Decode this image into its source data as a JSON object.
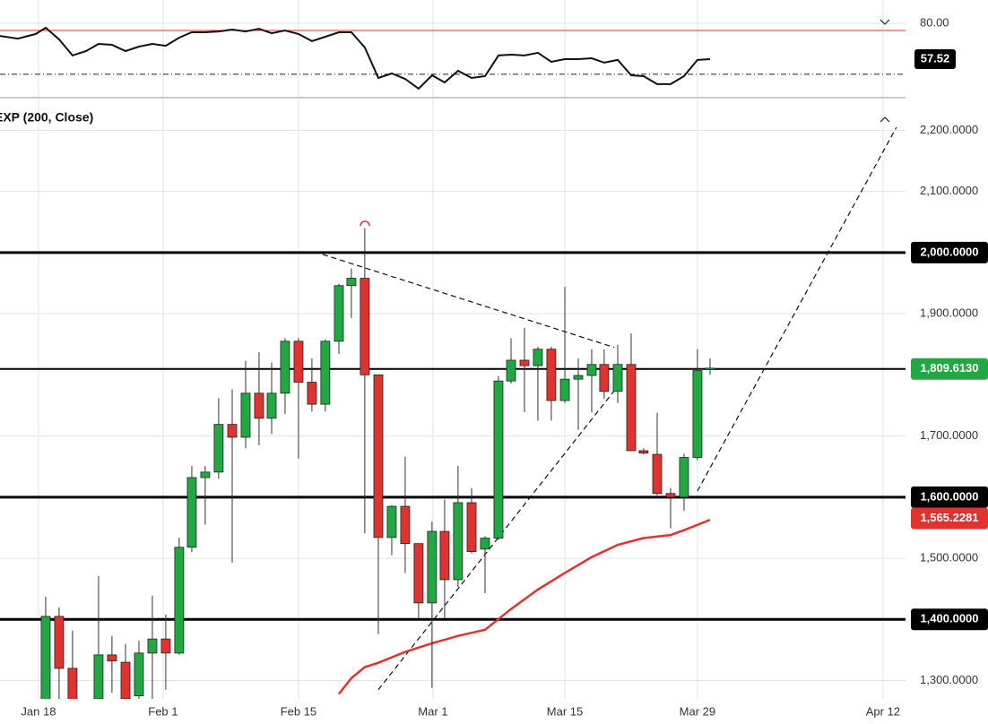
{
  "chart_data": [
    {
      "type": "line",
      "x": [
        -3.37,
        -2.05,
        -0.73,
        0,
        0.99,
        1.98,
        2.98,
        3.9,
        4.89,
        5.89,
        6.88,
        7.87,
        8.86,
        9.85,
        10.78,
        11.77,
        12.76,
        13.76,
        14.75,
        15.74,
        16.67,
        17.66,
        18.65,
        19.64,
        20.63,
        21.63,
        22.55,
        23.54,
        24.54,
        25.53,
        26.52,
        27.51,
        28.5,
        29.43,
        30.42,
        31.42,
        32.41,
        33.4,
        34.33,
        35.32,
        36.31,
        37.3,
        38.3,
        39.29,
        40.28,
        41.2,
        42.2,
        43.19,
        44.11,
        45.11,
        46.1,
        47.09,
        48.08,
        49.01
      ],
      "values": [
        72.1,
        70.4,
        73.3,
        77.2,
        69.9,
        59.8,
        62.6,
        67.1,
        66.5,
        62.6,
        65.4,
        67.1,
        65.9,
        71,
        74.4,
        74.4,
        74.9,
        76.1,
        74.9,
        76.6,
        73.8,
        75.5,
        73.3,
        68.8,
        71.6,
        74.4,
        74.4,
        64.8,
        45.7,
        48.5,
        45.1,
        39,
        47.4,
        42.9,
        50.2,
        45.7,
        46.8,
        59.8,
        60.3,
        59.8,
        61.5,
        55.8,
        57.5,
        57.5,
        58.1,
        55.3,
        57,
        47.4,
        46.8,
        41.8,
        41.8,
        46.8,
        57,
        57.52
      ],
      "color": "#111111",
      "xlim": [
        -3.37,
        63.43
      ],
      "ylim": [
        35,
        92.4
      ],
      "yticks": [
        {
          "value": 80,
          "label": "80.00"
        }
      ],
      "last_value": {
        "value": 57.52,
        "label": "57.52"
      },
      "levels": [
        {
          "value": 75.5,
          "color": "#e0322e",
          "style": "solid"
        },
        {
          "value": 48,
          "color": "#222222",
          "style": "dashdot"
        }
      ]
    },
    {
      "type": "candlestick",
      "x": [
        0,
        0.99,
        1.98,
        3.9,
        4.89,
        5.89,
        6.88,
        7.87,
        8.86,
        9.85,
        10.78,
        11.77,
        12.76,
        13.76,
        14.75,
        15.74,
        16.67,
        17.66,
        18.65,
        19.64,
        20.63,
        21.63,
        22.55,
        23.54,
        24.54,
        25.53,
        26.52,
        27.51,
        28.5,
        29.43,
        30.42,
        31.42,
        32.41,
        33.4,
        34.33,
        35.32,
        36.31,
        37.3,
        38.3,
        39.29,
        40.28,
        41.2,
        42.2,
        43.19,
        44.11,
        45.11,
        46.1,
        47.09,
        48.08,
        49.01
      ],
      "open": [
        1250,
        1405,
        1320,
        1270,
        1342,
        1330,
        1275,
        1345,
        1368,
        1345,
        1518,
        1632,
        1641,
        1719,
        1698,
        1770,
        1729,
        1770,
        1855,
        1788,
        1752,
        1855,
        1946,
        1958,
        1800,
        1534,
        1585,
        1524,
        1427,
        1544,
        1465,
        1591,
        1515,
        1533,
        1790,
        1824,
        1815,
        1842,
        1758,
        1793,
        1799,
        1817,
        1773,
        1817,
        1676,
        1670,
        1606,
        1600,
        1665,
        1809
      ],
      "high": [
        1437,
        1420,
        1382,
        1471,
        1373,
        1360,
        1365,
        1439,
        1408,
        1534,
        1651,
        1651,
        1762,
        1776,
        1823,
        1837,
        1820,
        1860,
        1860,
        1827,
        1858,
        1949,
        1974,
        2040,
        1800,
        1587,
        1666,
        1524,
        1560,
        1596,
        1651,
        1615,
        1536,
        1798,
        1860,
        1877,
        1846,
        1846,
        1944,
        1827,
        1842,
        1842,
        1849,
        1868,
        1680,
        1738,
        1615,
        1671,
        1842,
        1827
      ],
      "low": [
        1230,
        1260,
        1240,
        1250,
        1280,
        1250,
        1260,
        1260,
        1285,
        1342,
        1510,
        1555,
        1630,
        1493,
        1680,
        1685,
        1703,
        1736,
        1663,
        1740,
        1740,
        1834,
        1893,
        1541,
        1376,
        1505,
        1476,
        1402,
        1288,
        1402,
        1453,
        1508,
        1443,
        1530,
        1786,
        1739,
        1725,
        1725,
        1754,
        1710,
        1739,
        1761,
        1754,
        1676,
        1670,
        1603,
        1549,
        1578,
        1660,
        1800
      ],
      "close": [
        1405,
        1320,
        1260,
        1342,
        1332,
        1270,
        1345,
        1368,
        1345,
        1518,
        1632,
        1641,
        1719,
        1698,
        1770,
        1729,
        1770,
        1855,
        1788,
        1752,
        1855,
        1946,
        1958,
        1800,
        1534,
        1585,
        1524,
        1427,
        1544,
        1465,
        1591,
        1511,
        1533,
        1790,
        1824,
        1815,
        1842,
        1758,
        1793,
        1799,
        1817,
        1773,
        1817,
        1676,
        1672,
        1606,
        1600,
        1665,
        1807,
        1811
      ],
      "up_color": "#22a843",
      "down_color": "#e0322e",
      "xlim": [
        -3.37,
        63.43
      ],
      "ylim": [
        1270,
        2249
      ],
      "xticks": [
        {
          "value": -0.53,
          "label": "Jan 18"
        },
        {
          "value": 8.66,
          "label": "Feb 1"
        },
        {
          "value": 18.65,
          "label": "Feb 15"
        },
        {
          "value": 28.57,
          "label": "Mar 1"
        },
        {
          "value": 38.3,
          "label": "Mar 15"
        },
        {
          "value": 48.08,
          "label": "Mar 29"
        },
        {
          "value": 61.77,
          "label": "Apr 12"
        }
      ],
      "yticks": [
        {
          "value": 1300,
          "label": "1,300.0000"
        },
        {
          "value": 1500,
          "label": "1,500.0000"
        },
        {
          "value": 1700,
          "label": "1,700.0000"
        },
        {
          "value": 1900,
          "label": "1,900.0000"
        },
        {
          "value": 2100,
          "label": "2,100.0000"
        },
        {
          "value": 2200,
          "label": "2,200.0000"
        }
      ],
      "grid": true,
      "ma": {
        "label": "EXP (200, Close)",
        "color": "#e0322e",
        "x": [
          21.63,
          22.55,
          23.54,
          24.54,
          26.52,
          28.5,
          30.42,
          32.41,
          34.33,
          36.31,
          38.3,
          40.28,
          42.2,
          44.11,
          46.1,
          47.09,
          49.01
        ],
        "values": [
          1278,
          1304,
          1322,
          1329,
          1347,
          1361,
          1373,
          1383,
          1417,
          1449,
          1476,
          1502,
          1522,
          1533,
          1538,
          1546,
          1563
        ],
        "last_value": {
          "value": 1565.2281,
          "label": "1,565.2281"
        }
      },
      "levels": [
        {
          "value": 2000,
          "label": "2,000.0000",
          "color": "#000000"
        },
        {
          "value": 1809.613,
          "label": "1,809.6130",
          "color": "#22a843"
        },
        {
          "value": 1600,
          "label": "1,600.0000",
          "color": "#000000"
        },
        {
          "value": 1400,
          "label": "1,400.0000",
          "color": "#000000"
        }
      ],
      "trendlines": [
        {
          "x": [
            20.44,
            41.93
          ],
          "values": [
            1997,
            1845
          ]
        },
        {
          "x": [
            24.54,
            42.26
          ],
          "values": [
            1285,
            1783
          ]
        },
        {
          "x": [
            48.08,
            62.76
          ],
          "values": [
            1610,
            2205
          ]
        }
      ]
    }
  ]
}
